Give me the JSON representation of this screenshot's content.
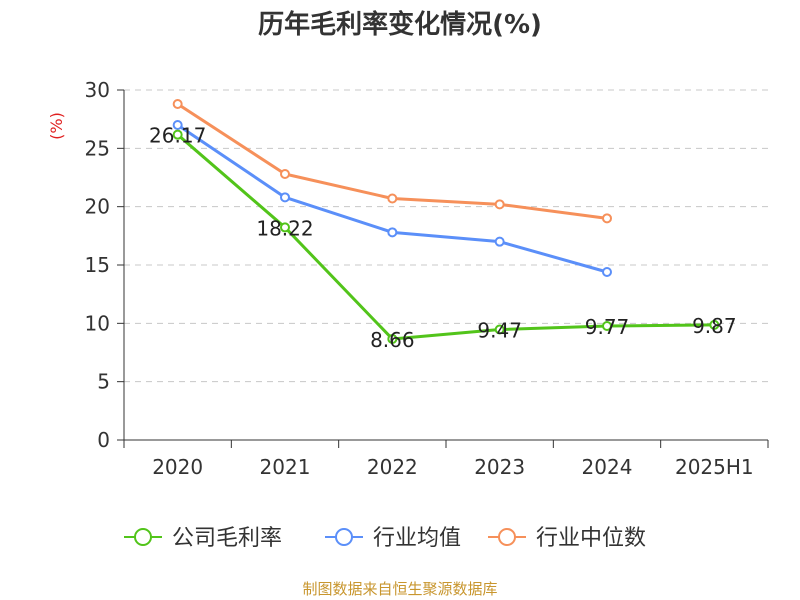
{
  "chart_data": {
    "type": "line",
    "title": "历年毛利率变化情况(%)",
    "ylabel": "(%)",
    "categories": [
      "2020",
      "2021",
      "2022",
      "2023",
      "2024",
      "2025H1"
    ],
    "ylim": [
      0,
      30
    ],
    "yticks": [
      0,
      5,
      10,
      15,
      20,
      25,
      30
    ],
    "grid": true,
    "legend_position": "bottom",
    "series": [
      {
        "name": "公司毛利率",
        "color": "#52c41a",
        "values": [
          26.17,
          18.22,
          8.66,
          9.47,
          9.77,
          9.87
        ],
        "show_labels": true
      },
      {
        "name": "行业均值",
        "color": "#5b8ff9",
        "values": [
          27.0,
          20.8,
          17.8,
          17.0,
          14.4,
          null
        ],
        "show_labels": false
      },
      {
        "name": "行业中位数",
        "color": "#f6905a",
        "values": [
          28.8,
          22.8,
          20.7,
          20.2,
          19.0,
          null
        ],
        "show_labels": false
      }
    ],
    "data_labels": [
      "26.17",
      "18.22",
      "8.66",
      "9.47",
      "9.77",
      "9.87"
    ]
  },
  "footer": "制图数据来自恒生聚源数据库"
}
